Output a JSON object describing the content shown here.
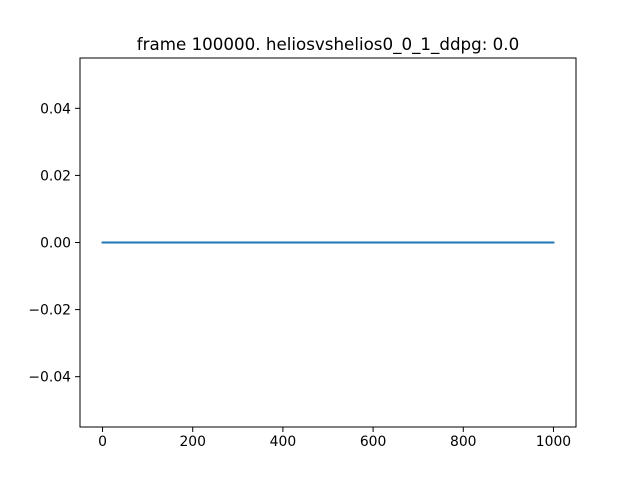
{
  "chart_data": {
    "type": "line",
    "title": "frame 100000. heliosvshelios0_0_1_ddpg: 0.0",
    "xlabel": "",
    "ylabel": "",
    "xlim": [
      -50,
      1050
    ],
    "ylim": [
      -0.055,
      0.055
    ],
    "grid": false,
    "legend": null,
    "x_ticks": [
      0,
      200,
      400,
      600,
      800,
      1000
    ],
    "x_tick_labels": [
      "0",
      "200",
      "400",
      "600",
      "800",
      "1000"
    ],
    "y_ticks": [
      0.04,
      0.02,
      0.0,
      -0.02,
      -0.04
    ],
    "y_tick_labels": [
      "0.04",
      "0.02",
      "0.00",
      "−0.02",
      "−0.04"
    ],
    "series": [
      {
        "color": "#1f77b4",
        "x": [
          0,
          1000
        ],
        "y": [
          0.0,
          0.0
        ]
      }
    ]
  }
}
